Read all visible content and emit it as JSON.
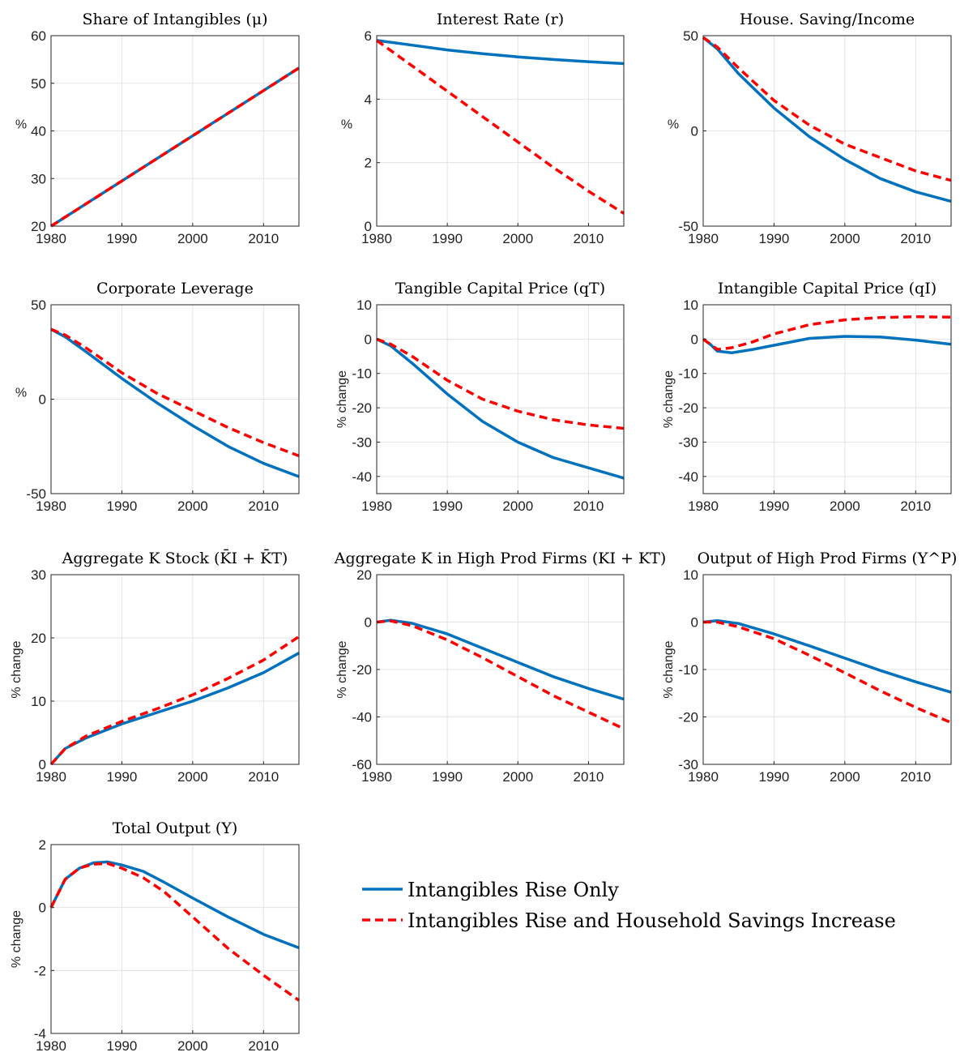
{
  "legend": {
    "entries": [
      {
        "label": "Intangibles Rise Only",
        "color": "#0072BD",
        "style": "solid"
      },
      {
        "label": "Intangibles Rise and Household Savings Increase",
        "color": "#FF0000",
        "style": "dashed"
      }
    ]
  },
  "chart_data": [
    {
      "type": "line",
      "title": "Share of Intangibles (μ)",
      "ylabel": "%",
      "xlim": [
        1980,
        2015
      ],
      "ylim": [
        20,
        60
      ],
      "xticks": [
        1980,
        1990,
        2000,
        2010
      ],
      "yticks": [
        20,
        30,
        40,
        50,
        60
      ],
      "grid": true,
      "series": [
        {
          "name": "Intangibles Rise Only",
          "x": [
            1980,
            2015
          ],
          "y": [
            20,
            53.2
          ]
        },
        {
          "name": "Intangibles Rise and Household Savings Increase",
          "x": [
            1980,
            2015
          ],
          "y": [
            20,
            53.2
          ]
        }
      ]
    },
    {
      "type": "line",
      "title": "Interest Rate (r)",
      "ylabel": "%",
      "xlim": [
        1980,
        2015
      ],
      "ylim": [
        0,
        6
      ],
      "xticks": [
        1980,
        1990,
        2000,
        2010
      ],
      "yticks": [
        0,
        2,
        4,
        6
      ],
      "grid": true,
      "series": [
        {
          "name": "Intangibles Rise Only",
          "x": [
            1980,
            1985,
            1990,
            1995,
            2000,
            2005,
            2010,
            2015
          ],
          "y": [
            5.85,
            5.7,
            5.55,
            5.43,
            5.33,
            5.25,
            5.18,
            5.12
          ]
        },
        {
          "name": "Intangibles Rise and Household Savings Increase",
          "x": [
            1980,
            1985,
            1990,
            1995,
            2000,
            2005,
            2010,
            2015
          ],
          "y": [
            5.85,
            5.05,
            4.25,
            3.45,
            2.65,
            1.85,
            1.1,
            0.4
          ]
        }
      ]
    },
    {
      "type": "line",
      "title": "House. Saving/Income",
      "ylabel": "%",
      "xlim": [
        1980,
        2015
      ],
      "ylim": [
        -50,
        50
      ],
      "xticks": [
        1980,
        1990,
        2000,
        2010
      ],
      "yticks": [
        -50,
        0,
        50
      ],
      "grid": true,
      "series": [
        {
          "name": "Intangibles Rise Only",
          "x": [
            1980,
            1982,
            1985,
            1990,
            1995,
            2000,
            2005,
            2010,
            2015
          ],
          "y": [
            49,
            43,
            30,
            12,
            -3,
            -15,
            -25,
            -32,
            -37
          ]
        },
        {
          "name": "Intangibles Rise and Household Savings Increase",
          "x": [
            1980,
            1982,
            1985,
            1990,
            1995,
            2000,
            2005,
            2010,
            2015
          ],
          "y": [
            49,
            44,
            33,
            16,
            3,
            -7,
            -14,
            -21,
            -26
          ]
        }
      ]
    },
    {
      "type": "line",
      "title": "Corporate Leverage",
      "ylabel": "%",
      "xlim": [
        1980,
        2015
      ],
      "ylim": [
        -50,
        50
      ],
      "xticks": [
        1980,
        1990,
        2000,
        2010
      ],
      "yticks": [
        -50,
        0,
        50
      ],
      "grid": true,
      "series": [
        {
          "name": "Intangibles Rise Only",
          "x": [
            1980,
            1982,
            1985,
            1990,
            1995,
            2000,
            2005,
            2010,
            2015
          ],
          "y": [
            37,
            33,
            25,
            11,
            -2,
            -14,
            -25,
            -34,
            -41
          ]
        },
        {
          "name": "Intangibles Rise and Household Savings Increase",
          "x": [
            1980,
            1982,
            1985,
            1990,
            1995,
            2000,
            2005,
            2010,
            2015
          ],
          "y": [
            37,
            34,
            27,
            14,
            3,
            -6,
            -15,
            -23,
            -30
          ]
        }
      ]
    },
    {
      "type": "line",
      "title": "Tangible Capital Price (qT)",
      "ylabel": "% change",
      "xlim": [
        1980,
        2015
      ],
      "ylim": [
        -45,
        10
      ],
      "xticks": [
        1980,
        1990,
        2000,
        2010
      ],
      "yticks": [
        -40,
        -30,
        -20,
        -10,
        0,
        10
      ],
      "grid": true,
      "series": [
        {
          "name": "Intangibles Rise Only",
          "x": [
            1980,
            1982,
            1985,
            1990,
            1995,
            2000,
            2005,
            2010,
            2015
          ],
          "y": [
            0,
            -2,
            -7,
            -16,
            -24,
            -30,
            -34.5,
            -37.5,
            -40.5
          ]
        },
        {
          "name": "Intangibles Rise and Household Savings Increase",
          "x": [
            1980,
            1982,
            1985,
            1990,
            1995,
            2000,
            2005,
            2010,
            2015
          ],
          "y": [
            0,
            -1.5,
            -5,
            -12,
            -17.5,
            -21,
            -23.5,
            -25,
            -26
          ]
        }
      ]
    },
    {
      "type": "line",
      "title": "Intangible Capital Price (qI)",
      "ylabel": "% change",
      "xlim": [
        1980,
        2015
      ],
      "ylim": [
        -45,
        10
      ],
      "xticks": [
        1980,
        1990,
        2000,
        2010
      ],
      "yticks": [
        -40,
        -30,
        -20,
        -10,
        0,
        10
      ],
      "grid": true,
      "series": [
        {
          "name": "Intangibles Rise Only",
          "x": [
            1980,
            1981,
            1982,
            1984,
            1987,
            1990,
            1995,
            2000,
            2005,
            2010,
            2015
          ],
          "y": [
            0,
            -1.5,
            -3.5,
            -4,
            -3,
            -1.8,
            0.2,
            0.8,
            0.6,
            -0.3,
            -1.5
          ]
        },
        {
          "name": "Intangibles Rise and Household Savings Increase",
          "x": [
            1980,
            1981,
            1982,
            1984,
            1987,
            1990,
            1995,
            2000,
            2005,
            2010,
            2015
          ],
          "y": [
            0,
            -1.5,
            -3,
            -2.5,
            -0.8,
            1.5,
            4.2,
            5.6,
            6.3,
            6.5,
            6.4
          ]
        }
      ]
    },
    {
      "type": "line",
      "title": "Aggregate K Stock (K̄I + K̄T)",
      "ylabel": "% change",
      "xlim": [
        1980,
        2015
      ],
      "ylim": [
        0,
        30
      ],
      "xticks": [
        1980,
        1990,
        2000,
        2010
      ],
      "yticks": [
        0,
        10,
        20,
        30
      ],
      "grid": true,
      "series": [
        {
          "name": "Intangibles Rise Only",
          "x": [
            1980,
            1982,
            1985,
            1990,
            1995,
            2000,
            2005,
            2010,
            2015
          ],
          "y": [
            0,
            2.5,
            4.2,
            6.4,
            8.2,
            10,
            12.1,
            14.5,
            17.6
          ]
        },
        {
          "name": "Intangibles Rise and Household Savings Increase",
          "x": [
            1980,
            1982,
            1985,
            1990,
            1995,
            2000,
            2005,
            2010,
            2015
          ],
          "y": [
            0,
            2.5,
            4.5,
            6.8,
            8.8,
            11,
            13.6,
            16.5,
            20.2
          ]
        }
      ]
    },
    {
      "type": "line",
      "title": "Aggregate K in High Prod Firms (KI + KT)",
      "ylabel": "% change",
      "xlim": [
        1980,
        2015
      ],
      "ylim": [
        -60,
        20
      ],
      "xticks": [
        1980,
        1990,
        2000,
        2010
      ],
      "yticks": [
        -60,
        -40,
        -20,
        0,
        20
      ],
      "grid": true,
      "series": [
        {
          "name": "Intangibles Rise Only",
          "x": [
            1980,
            1982,
            1985,
            1990,
            1995,
            2000,
            2005,
            2010,
            2015
          ],
          "y": [
            0,
            0.8,
            -0.5,
            -5,
            -11,
            -17,
            -23,
            -28,
            -32.5
          ]
        },
        {
          "name": "Intangibles Rise and Household Savings Increase",
          "x": [
            1980,
            1982,
            1985,
            1990,
            1995,
            2000,
            2005,
            2010,
            2015
          ],
          "y": [
            0,
            0.5,
            -1.5,
            -7.5,
            -15,
            -23,
            -31,
            -38,
            -45
          ]
        }
      ]
    },
    {
      "type": "line",
      "title": "Output of High Prod Firms (Y^P)",
      "ylabel": "% change",
      "xlim": [
        1980,
        2015
      ],
      "ylim": [
        -30,
        10
      ],
      "xticks": [
        1980,
        1990,
        2000,
        2010
      ],
      "yticks": [
        -30,
        -20,
        -10,
        0,
        10
      ],
      "grid": true,
      "series": [
        {
          "name": "Intangibles Rise Only",
          "x": [
            1980,
            1982,
            1985,
            1990,
            1995,
            2000,
            2005,
            2010,
            2015
          ],
          "y": [
            0,
            0.3,
            -0.3,
            -2.5,
            -5,
            -7.6,
            -10.2,
            -12.6,
            -14.8
          ]
        },
        {
          "name": "Intangibles Rise and Household Savings Increase",
          "x": [
            1980,
            1982,
            1985,
            1990,
            1995,
            2000,
            2005,
            2010,
            2015
          ],
          "y": [
            0,
            0,
            -1,
            -3.5,
            -7,
            -10.7,
            -14.5,
            -18,
            -21.2
          ]
        }
      ]
    },
    {
      "type": "line",
      "title": "Total Output (Y)",
      "ylabel": "% change",
      "xlim": [
        1980,
        2015
      ],
      "ylim": [
        -4,
        2
      ],
      "xticks": [
        1980,
        1990,
        2000,
        2010
      ],
      "yticks": [
        -4,
        -2,
        0,
        2
      ],
      "grid": true,
      "series": [
        {
          "name": "Intangibles Rise Only",
          "x": [
            1980,
            1982,
            1984,
            1986,
            1988,
            1990,
            1993,
            1996,
            2000,
            2005,
            2010,
            2015
          ],
          "y": [
            0,
            0.9,
            1.25,
            1.42,
            1.45,
            1.35,
            1.15,
            0.8,
            0.3,
            -0.3,
            -0.85,
            -1.28
          ]
        },
        {
          "name": "Intangibles Rise and Household Savings Increase",
          "x": [
            1980,
            1982,
            1984,
            1986,
            1988,
            1990,
            1993,
            1996,
            2000,
            2005,
            2010,
            2015
          ],
          "y": [
            0,
            0.9,
            1.25,
            1.38,
            1.4,
            1.25,
            0.95,
            0.5,
            -0.3,
            -1.3,
            -2.15,
            -2.95
          ]
        }
      ]
    }
  ]
}
